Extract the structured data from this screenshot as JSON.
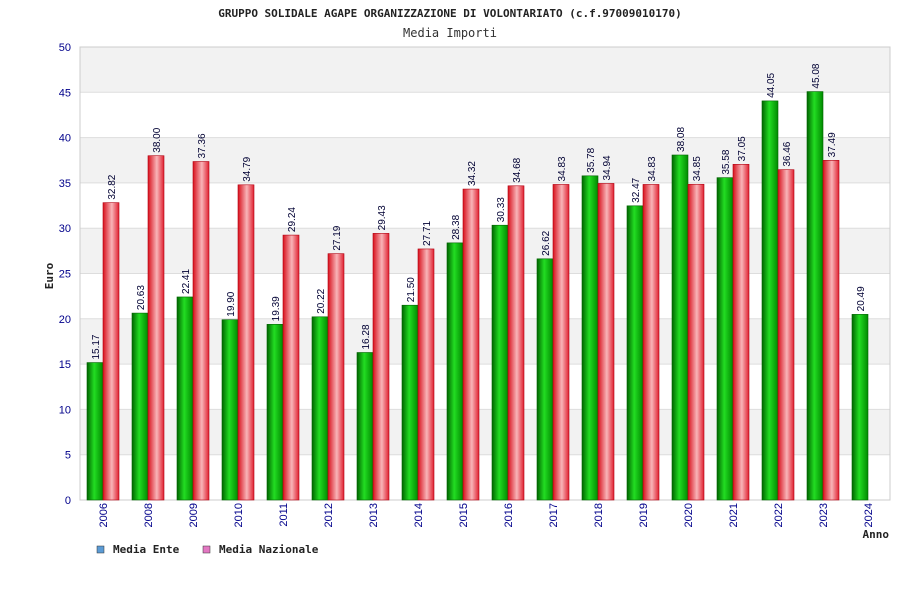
{
  "chart_data": {
    "type": "bar",
    "title": "GRUPPO SOLIDALE AGAPE ORGANIZZAZIONE DI VOLONTARIATO (c.f.97009010170)",
    "subtitle": "Media Importi",
    "ylabel": "Euro",
    "xlabel": "Anno",
    "ylim": [
      0,
      50
    ],
    "yticks": [
      0,
      5,
      10,
      15,
      20,
      25,
      30,
      35,
      40,
      45,
      50
    ],
    "grid": true,
    "legend_position": "bottom-left",
    "categories": [
      "2006",
      "2008",
      "2009",
      "2010",
      "2011",
      "2012",
      "2013",
      "2014",
      "2015",
      "2016",
      "2017",
      "2018",
      "2019",
      "2020",
      "2021",
      "2022",
      "2023",
      "2024"
    ],
    "series": [
      {
        "name": "Media Ente",
        "color": "#00b000",
        "legend_color": "#5b9bd5",
        "values": [
          15.17,
          20.63,
          22.41,
          19.9,
          19.39,
          20.22,
          16.28,
          21.5,
          28.38,
          30.33,
          26.62,
          35.78,
          32.47,
          38.08,
          35.58,
          44.05,
          45.08,
          20.49
        ],
        "labels": [
          "15.17",
          "20.63",
          "22.41",
          "19.90",
          "19.39",
          "20.22",
          "16.28",
          "21.50",
          "28.38",
          "30.33",
          "26.62",
          "35.78",
          "32.47",
          "38.08",
          "35.58",
          "44.05",
          "45.08",
          "20.49"
        ]
      },
      {
        "name": "Media Nazionale",
        "color": "#e8202a",
        "legend_color": "#e377c2",
        "values": [
          32.82,
          38.0,
          37.36,
          34.79,
          29.24,
          27.19,
          29.43,
          27.71,
          34.32,
          34.68,
          34.83,
          34.94,
          34.83,
          34.85,
          37.05,
          36.46,
          37.49,
          null
        ],
        "labels": [
          "32.82",
          "38.00",
          "37.36",
          "34.79",
          "29.24",
          "27.19",
          "29.43",
          "27.71",
          "34.32",
          "34.68",
          "34.83",
          "34.94",
          "34.83",
          "34.85",
          "37.05",
          "36.46",
          "37.49",
          null
        ]
      }
    ]
  }
}
